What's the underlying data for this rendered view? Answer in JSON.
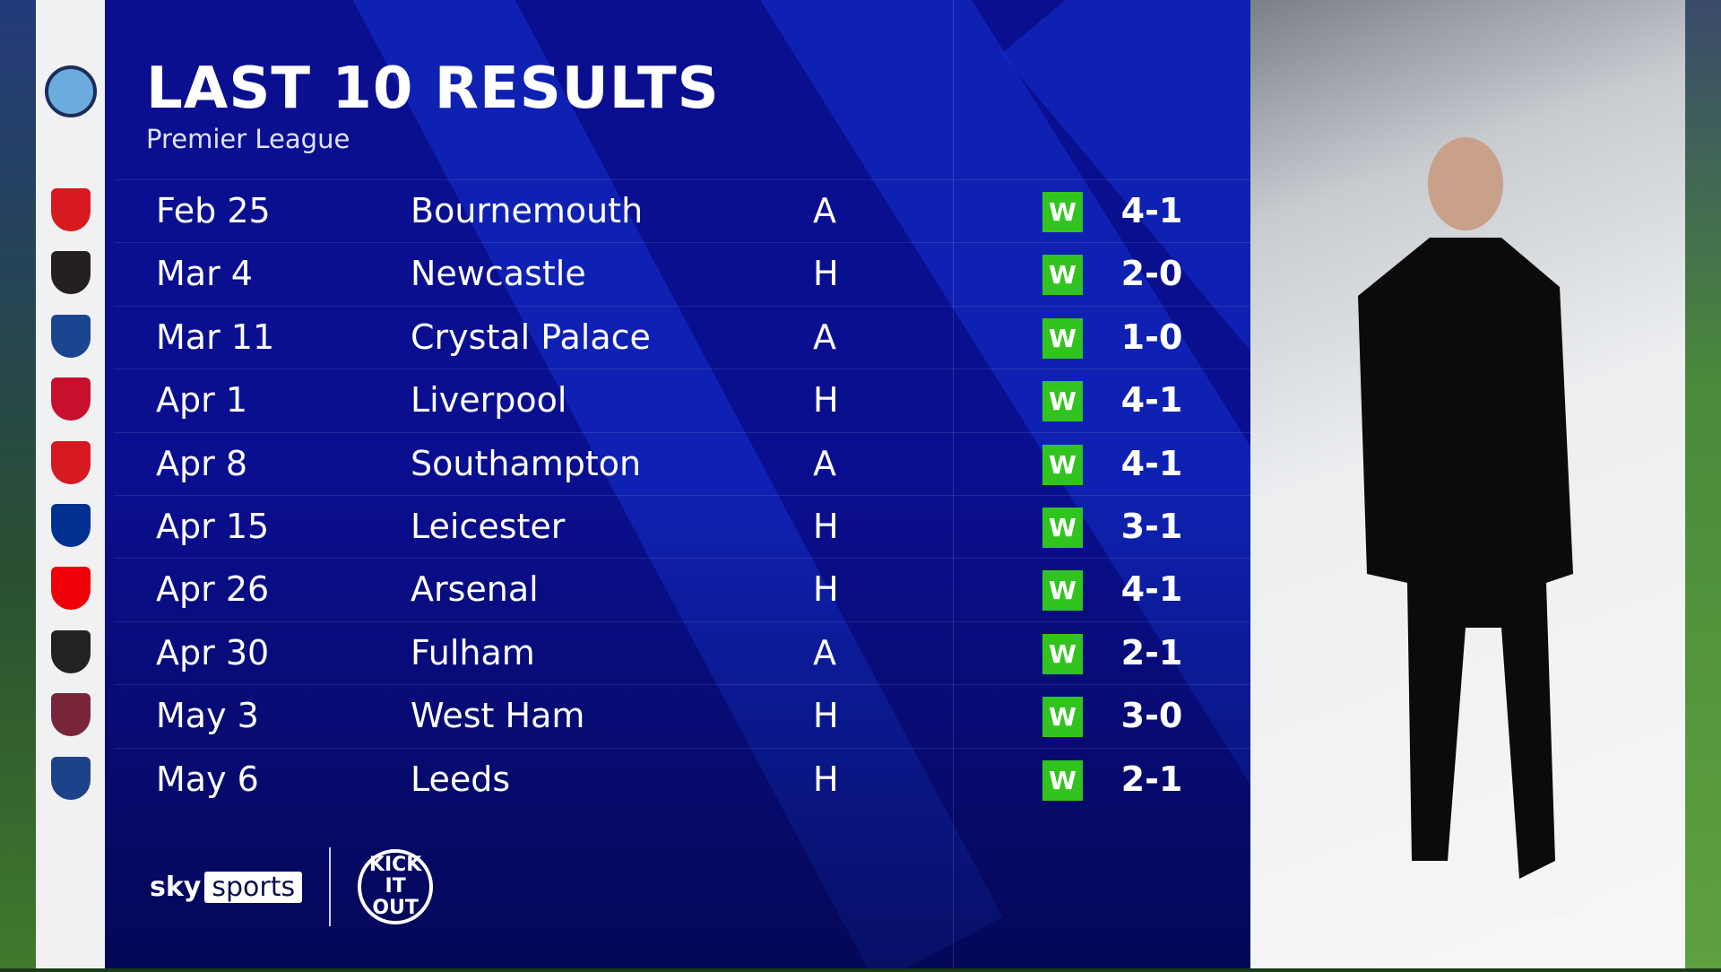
{
  "header": {
    "title": "LAST 10 RESULTS",
    "subtitle": "Premier League",
    "team_crest": "manchester-city-crest"
  },
  "results": [
    {
      "date": "Feb 25",
      "opponent": "Bournemouth",
      "venue": "A",
      "result": "W",
      "score": "4-1",
      "crest_color": "#d71920"
    },
    {
      "date": "Mar 4",
      "opponent": "Newcastle",
      "venue": "H",
      "result": "W",
      "score": "2-0",
      "crest_color": "#241f20"
    },
    {
      "date": "Mar 11",
      "opponent": "Crystal Palace",
      "venue": "A",
      "result": "W",
      "score": "1-0",
      "crest_color": "#1b458f"
    },
    {
      "date": "Apr 1",
      "opponent": "Liverpool",
      "venue": "H",
      "result": "W",
      "score": "4-1",
      "crest_color": "#c8102e"
    },
    {
      "date": "Apr 8",
      "opponent": "Southampton",
      "venue": "A",
      "result": "W",
      "score": "4-1",
      "crest_color": "#d71920"
    },
    {
      "date": "Apr 15",
      "opponent": "Leicester",
      "venue": "H",
      "result": "W",
      "score": "3-1",
      "crest_color": "#003090"
    },
    {
      "date": "Apr 26",
      "opponent": "Arsenal",
      "venue": "H",
      "result": "W",
      "score": "4-1",
      "crest_color": "#ef0107"
    },
    {
      "date": "Apr 30",
      "opponent": "Fulham",
      "venue": "A",
      "result": "W",
      "score": "2-1",
      "crest_color": "#222222"
    },
    {
      "date": "May 3",
      "opponent": "West Ham",
      "venue": "H",
      "result": "W",
      "score": "3-0",
      "crest_color": "#7a263a"
    },
    {
      "date": "May 6",
      "opponent": "Leeds",
      "venue": "H",
      "result": "W",
      "score": "2-1",
      "crest_color": "#1d428a"
    }
  ],
  "colors": {
    "panel": "#0a0f8f",
    "win": "#32c41e"
  },
  "footer": {
    "brand_sky": "sky",
    "brand_sports": "sports",
    "partner_logo": "KICK IT OUT"
  }
}
